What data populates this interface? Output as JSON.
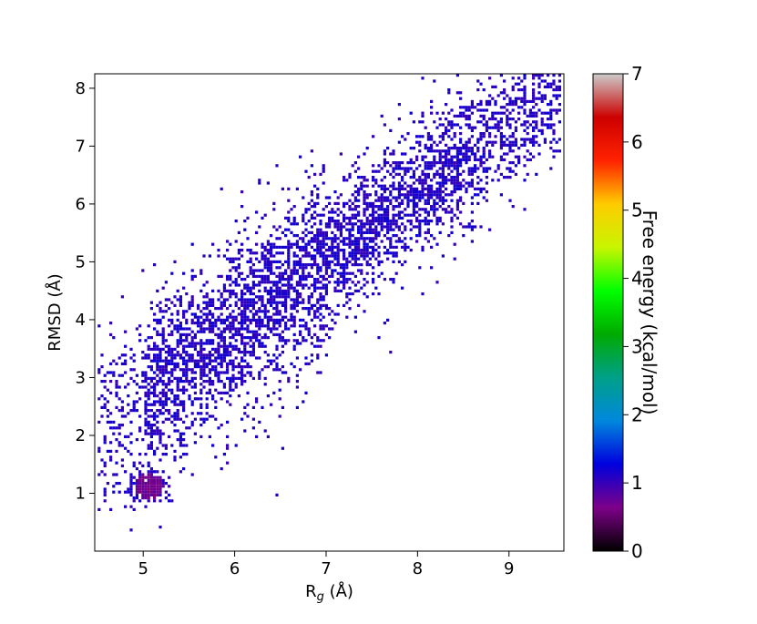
{
  "chart_data": {
    "type": "heatmap",
    "title": "",
    "xlabel": "R",
    "xlabel_sub": "g",
    "xlabel_unit": " (Å)",
    "ylabel": "RMSD (Å)",
    "xlim": [
      4.47,
      9.6
    ],
    "ylim": [
      0,
      8.25
    ],
    "xticks": [
      5,
      6,
      7,
      8,
      9
    ],
    "yticks": [
      1,
      2,
      3,
      4,
      5,
      6,
      7,
      8
    ],
    "grid": false,
    "legend": "none",
    "colorbar": {
      "label": "Free energy (kcal/mol)",
      "range": [
        0,
        7
      ],
      "ticks": [
        0,
        1,
        2,
        3,
        4,
        5,
        6,
        7
      ],
      "colormap": "nipy_spectral",
      "stops": [
        "#000000",
        "#7d0088",
        "#0000dd",
        "#0088dd",
        "#00a088",
        "#00aa00",
        "#00ff00",
        "#c8f500",
        "#ffcc00",
        "#ff2200",
        "#cc0000",
        "#cccccc"
      ]
    },
    "density_model": {
      "description_of_bands": "points concentrated along diagonal band",
      "basin_center": [
        5.05,
        1.15
      ],
      "band_start": [
        4.9,
        2.6
      ],
      "band_end": [
        9.5,
        8.05
      ],
      "band_halfwidth_rmsd": 1.3,
      "basin_level_kcal": 0.7,
      "band_level_kcal": 1.1
    }
  }
}
